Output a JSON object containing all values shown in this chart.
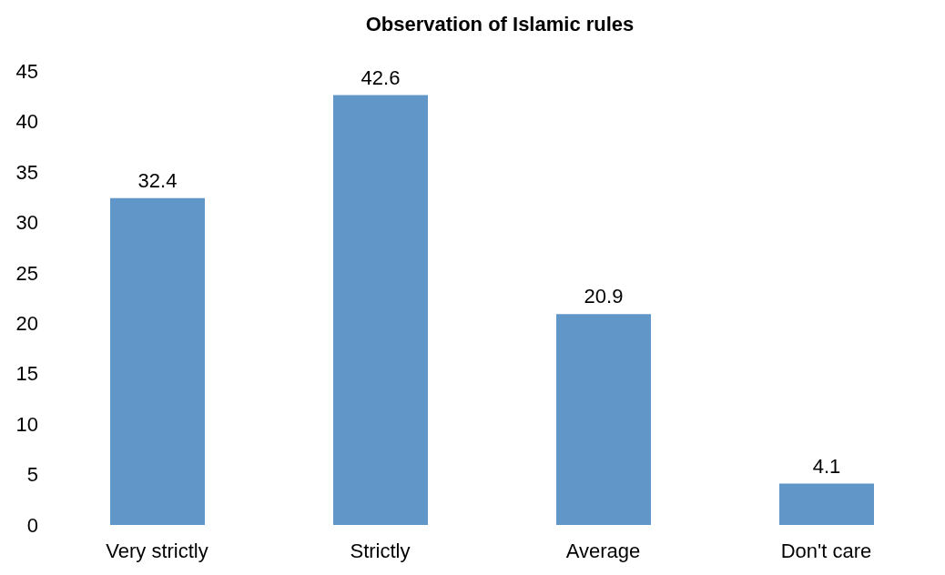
{
  "chart_data": {
    "type": "bar",
    "title": "Observation of Islamic rules",
    "categories": [
      "Very strictly",
      "Strictly",
      "Average",
      "Don't care"
    ],
    "values": [
      32.4,
      42.6,
      20.9,
      4.1
    ],
    "color": "#6096c8",
    "ylim": [
      0,
      45
    ],
    "yticks": [
      0,
      5,
      10,
      15,
      20,
      25,
      30,
      35,
      40,
      45
    ],
    "grid": false,
    "data_labels": true
  }
}
